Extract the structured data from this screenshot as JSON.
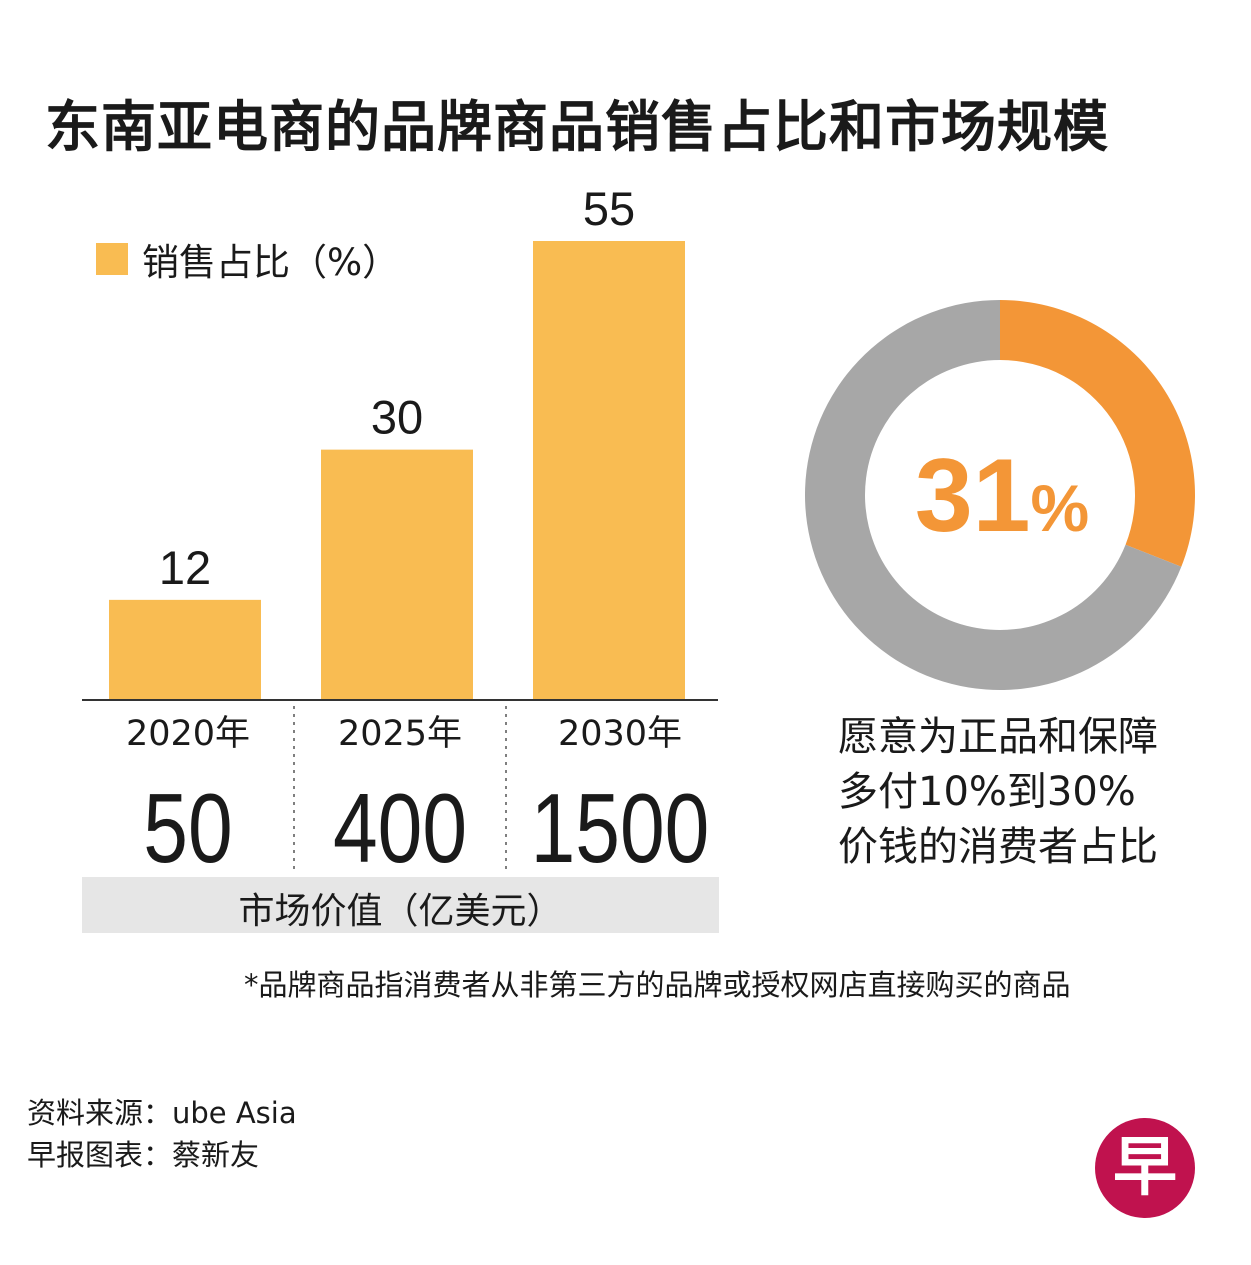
{
  "title": "东南亚电商的品牌商品销售占比和市场规模",
  "colors": {
    "bar": "#f9bc52",
    "donut_highlight": "#f39637",
    "donut_rest": "#a7a7a7",
    "band": "#e6e6e6",
    "logo": "#c0124e"
  },
  "chart_data": [
    {
      "type": "bar",
      "legend": "销售占比（%）",
      "categories": [
        "2020年",
        "2025年",
        "2030年"
      ],
      "values": [
        12,
        30,
        55
      ],
      "value_labels": [
        "12",
        "30",
        "55"
      ],
      "ylim": [
        0,
        55
      ],
      "grid": false,
      "secondary_row": {
        "label": "市场价值（亿美元）",
        "values": [
          50,
          400,
          1500
        ],
        "value_labels": [
          "50",
          "400",
          "1500"
        ]
      }
    },
    {
      "type": "pie",
      "style": "donut",
      "slices": [
        {
          "value": 31,
          "color": "#f39637"
        },
        {
          "value": 69,
          "color": "#a7a7a7"
        }
      ],
      "center_label": "31",
      "center_unit": "%",
      "caption": [
        "愿意为正品和保障",
        "多付10%到30%",
        "价钱的消费者占比"
      ]
    }
  ],
  "footnote": "*品牌商品指消费者从非第三方的品牌或授权网店直接购买的商品",
  "source": {
    "line1": "资料来源：ube Asia",
    "line2": "早报图表：蔡新友"
  },
  "logo": {
    "char": "早",
    "icon": "zaobao-logo-icon"
  }
}
